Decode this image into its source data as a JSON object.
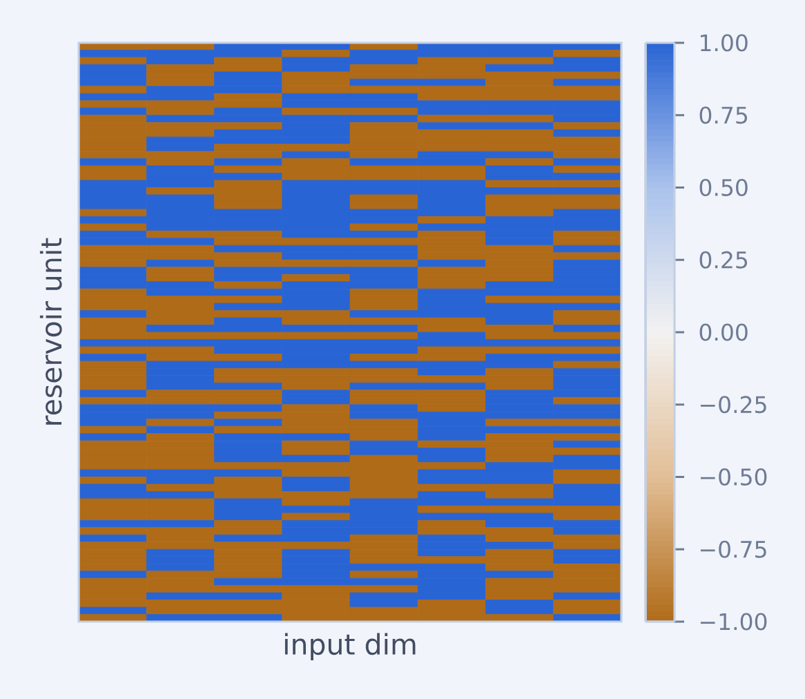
{
  "chart_data": {
    "type": "heatmap",
    "xlabel": "input dim",
    "ylabel": "reservoir unit",
    "categories": [
      null,
      null,
      null,
      null,
      null,
      null,
      null,
      null
    ],
    "y_categories": [
      null,
      null,
      null,
      null,
      null,
      null,
      null,
      null,
      null,
      null,
      null,
      null,
      null,
      null,
      null,
      null,
      null,
      null,
      null,
      null,
      null,
      null,
      null,
      null,
      null,
      null,
      null,
      null,
      null,
      null,
      null,
      null,
      null,
      null,
      null,
      null,
      null,
      null,
      null,
      null,
      null,
      null,
      null,
      null,
      null,
      null,
      null,
      null,
      null,
      null,
      null,
      null,
      null,
      null,
      null,
      null,
      null,
      null,
      null,
      null,
      null,
      null,
      null,
      null,
      null,
      null,
      null,
      null,
      null,
      null,
      null,
      null,
      null,
      null,
      null,
      null,
      null,
      null,
      null,
      null
    ],
    "cells": [
      [
        -1,
        -1,
        1,
        1,
        -1,
        1,
        1,
        1
      ],
      [
        1,
        1,
        1,
        -1,
        1,
        1,
        1,
        -1
      ],
      [
        -1,
        1,
        -1,
        1,
        1,
        -1,
        -1,
        1
      ],
      [
        1,
        -1,
        -1,
        1,
        -1,
        -1,
        1,
        1
      ],
      [
        1,
        -1,
        1,
        -1,
        -1,
        -1,
        -1,
        -1
      ],
      [
        1,
        -1,
        1,
        -1,
        1,
        1,
        -1,
        1
      ],
      [
        -1,
        1,
        1,
        -1,
        -1,
        -1,
        -1,
        -1
      ],
      [
        1,
        1,
        -1,
        1,
        1,
        -1,
        -1,
        -1
      ],
      [
        -1,
        -1,
        -1,
        1,
        1,
        1,
        1,
        1
      ],
      [
        1,
        -1,
        1,
        -1,
        -1,
        1,
        1,
        1
      ],
      [
        -1,
        1,
        1,
        1,
        1,
        -1,
        -1,
        1
      ],
      [
        -1,
        -1,
        -1,
        1,
        -1,
        1,
        1,
        -1
      ],
      [
        -1,
        -1,
        1,
        1,
        -1,
        -1,
        -1,
        1
      ],
      [
        -1,
        1,
        1,
        1,
        -1,
        -1,
        -1,
        -1
      ],
      [
        -1,
        1,
        -1,
        -1,
        -1,
        -1,
        -1,
        -1
      ],
      [
        -1,
        -1,
        -1,
        1,
        -1,
        1,
        1,
        -1
      ],
      [
        1,
        -1,
        1,
        -1,
        1,
        1,
        -1,
        1
      ],
      [
        -1,
        1,
        -1,
        -1,
        -1,
        -1,
        1,
        -1
      ],
      [
        -1,
        1,
        1,
        -1,
        -1,
        -1,
        1,
        1
      ],
      [
        1,
        1,
        -1,
        1,
        1,
        1,
        -1,
        -1
      ],
      [
        1,
        -1,
        -1,
        1,
        1,
        1,
        1,
        1
      ],
      [
        1,
        1,
        -1,
        1,
        -1,
        1,
        -1,
        -1
      ],
      [
        1,
        1,
        -1,
        1,
        -1,
        1,
        -1,
        -1
      ],
      [
        -1,
        1,
        1,
        1,
        1,
        1,
        -1,
        1
      ],
      [
        1,
        1,
        1,
        1,
        1,
        -1,
        1,
        1
      ],
      [
        -1,
        1,
        1,
        1,
        -1,
        1,
        1,
        1
      ],
      [
        1,
        -1,
        -1,
        1,
        1,
        -1,
        1,
        -1
      ],
      [
        1,
        1,
        -1,
        -1,
        -1,
        -1,
        1,
        -1
      ],
      [
        -1,
        -1,
        1,
        1,
        1,
        -1,
        -1,
        1
      ],
      [
        -1,
        -1,
        -1,
        1,
        1,
        -1,
        -1,
        -1
      ],
      [
        -1,
        1,
        -1,
        -1,
        -1,
        1,
        -1,
        1
      ],
      [
        1,
        -1,
        1,
        1,
        1,
        -1,
        -1,
        1
      ],
      [
        1,
        -1,
        1,
        -1,
        1,
        -1,
        -1,
        1
      ],
      [
        1,
        1,
        -1,
        1,
        1,
        -1,
        1,
        1
      ],
      [
        -1,
        1,
        1,
        1,
        -1,
        1,
        1,
        1
      ],
      [
        -1,
        -1,
        -1,
        1,
        -1,
        1,
        -1,
        -1
      ],
      [
        -1,
        -1,
        1,
        1,
        -1,
        1,
        1,
        1
      ],
      [
        1,
        -1,
        -1,
        -1,
        1,
        1,
        1,
        -1
      ],
      [
        -1,
        -1,
        1,
        -1,
        -1,
        -1,
        1,
        -1
      ],
      [
        -1,
        1,
        1,
        1,
        1,
        -1,
        -1,
        1
      ],
      [
        -1,
        -1,
        -1,
        -1,
        -1,
        1,
        -1,
        -1
      ],
      [
        1,
        1,
        1,
        1,
        1,
        1,
        1,
        1
      ],
      [
        -1,
        -1,
        1,
        1,
        1,
        -1,
        -1,
        -1
      ],
      [
        1,
        -1,
        -1,
        1,
        -1,
        -1,
        1,
        1
      ],
      [
        -1,
        1,
        1,
        1,
        1,
        1,
        1,
        -1
      ],
      [
        -1,
        1,
        -1,
        -1,
        -1,
        1,
        -1,
        1
      ],
      [
        -1,
        1,
        -1,
        -1,
        -1,
        -1,
        -1,
        1
      ],
      [
        -1,
        1,
        1,
        -1,
        1,
        1,
        -1,
        1
      ],
      [
        1,
        -1,
        -1,
        1,
        -1,
        -1,
        1,
        1
      ],
      [
        -1,
        -1,
        -1,
        1,
        -1,
        -1,
        1,
        -1
      ],
      [
        1,
        1,
        1,
        -1,
        1,
        -1,
        1,
        1
      ],
      [
        1,
        1,
        -1,
        -1,
        1,
        1,
        1,
        1
      ],
      [
        1,
        -1,
        1,
        -1,
        -1,
        1,
        -1,
        -1
      ],
      [
        -1,
        1,
        -1,
        -1,
        -1,
        1,
        1,
        1
      ],
      [
        1,
        -1,
        1,
        1,
        -1,
        1,
        -1,
        -1
      ],
      [
        -1,
        -1,
        1,
        -1,
        1,
        -1,
        -1,
        1
      ],
      [
        -1,
        -1,
        1,
        -1,
        1,
        1,
        -1,
        -1
      ],
      [
        -1,
        -1,
        1,
        1,
        -1,
        1,
        -1,
        1
      ],
      [
        -1,
        -1,
        -1,
        -1,
        -1,
        -1,
        1,
        1
      ],
      [
        1,
        1,
        1,
        -1,
        -1,
        1,
        1,
        -1
      ],
      [
        -1,
        1,
        -1,
        1,
        -1,
        1,
        1,
        -1
      ],
      [
        1,
        -1,
        -1,
        1,
        -1,
        -1,
        -1,
        1
      ],
      [
        1,
        1,
        -1,
        -1,
        -1,
        1,
        -1,
        1
      ],
      [
        -1,
        -1,
        1,
        -1,
        1,
        1,
        1,
        1
      ],
      [
        -1,
        -1,
        1,
        1,
        1,
        -1,
        -1,
        -1
      ],
      [
        -1,
        -1,
        1,
        -1,
        1,
        1,
        1,
        -1
      ],
      [
        1,
        1,
        -1,
        1,
        1,
        -1,
        1,
        1
      ],
      [
        -1,
        -1,
        -1,
        1,
        1,
        -1,
        -1,
        1
      ],
      [
        1,
        -1,
        1,
        1,
        -1,
        1,
        -1,
        -1
      ],
      [
        -1,
        -1,
        -1,
        -1,
        -1,
        1,
        1,
        -1
      ],
      [
        -1,
        1,
        -1,
        1,
        -1,
        1,
        -1,
        1
      ],
      [
        -1,
        1,
        -1,
        1,
        -1,
        -1,
        -1,
        1
      ],
      [
        -1,
        1,
        -1,
        1,
        1,
        1,
        -1,
        -1
      ],
      [
        1,
        -1,
        -1,
        1,
        -1,
        1,
        1,
        -1
      ],
      [
        -1,
        -1,
        1,
        1,
        1,
        1,
        -1,
        -1
      ],
      [
        -1,
        -1,
        -1,
        -1,
        -1,
        1,
        -1,
        -1
      ],
      [
        -1,
        1,
        1,
        -1,
        1,
        1,
        -1,
        1
      ],
      [
        -1,
        -1,
        -1,
        -1,
        1,
        -1,
        1,
        -1
      ],
      [
        1,
        -1,
        -1,
        -1,
        -1,
        -1,
        1,
        -1
      ],
      [
        -1,
        1,
        1,
        -1,
        -1,
        -1,
        -1,
        1
      ]
    ],
    "clim": [
      -1,
      1
    ],
    "cticks": [
      {
        "value": -1,
        "label": "−1.00"
      },
      {
        "value": -0.75,
        "label": "−0.75"
      },
      {
        "value": -0.5,
        "label": "−0.50"
      },
      {
        "value": -0.25,
        "label": "−0.25"
      },
      {
        "value": 0,
        "label": "0.00"
      },
      {
        "value": 0.25,
        "label": "0.25"
      },
      {
        "value": 0.5,
        "label": "0.50"
      },
      {
        "value": 0.75,
        "label": "0.75"
      },
      {
        "value": 1,
        "label": "1.00"
      }
    ]
  }
}
